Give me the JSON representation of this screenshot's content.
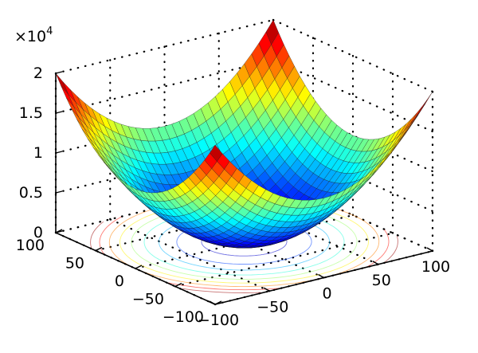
{
  "chart_data": {
    "type": "surface",
    "function": "z = x^2 + y^2",
    "x_range": [
      -100,
      100
    ],
    "y_range": [
      -100,
      100
    ],
    "z_range": [
      0,
      20000
    ],
    "grid_n": 30,
    "contour_levels": [
      1000,
      2500,
      4000,
      5500,
      7000,
      8500,
      10000,
      11500,
      13000
    ],
    "z_exponent_base": "×10",
    "z_exponent_power": "4",
    "z_ticks": [
      {
        "value": 0,
        "label": "0"
      },
      {
        "value": 5000,
        "label": "0.5"
      },
      {
        "value": 10000,
        "label": "1"
      },
      {
        "value": 15000,
        "label": "1.5"
      },
      {
        "value": 20000,
        "label": "2"
      }
    ],
    "x_ticks": [
      {
        "value": -100,
        "label": "−100"
      },
      {
        "value": -50,
        "label": "−50"
      },
      {
        "value": 0,
        "label": "0"
      },
      {
        "value": 50,
        "label": "50"
      },
      {
        "value": 100,
        "label": "100"
      }
    ],
    "y_ticks": [
      {
        "value": -100,
        "label": "−100"
      },
      {
        "value": -50,
        "label": "−50"
      },
      {
        "value": 0,
        "label": "0"
      },
      {
        "value": 50,
        "label": "50"
      },
      {
        "value": 100,
        "label": "100"
      }
    ],
    "colormap": "jet",
    "grid": true,
    "box": "dotted"
  }
}
